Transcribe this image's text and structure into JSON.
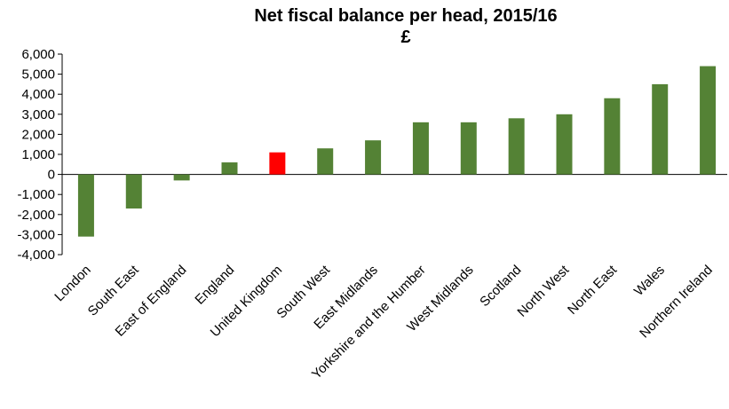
{
  "chart_data": {
    "type": "bar",
    "title": "Net fiscal balance per head, 2015/16",
    "subtitle": "£",
    "xlabel": "",
    "ylabel": "",
    "ylim": [
      -4000,
      6000
    ],
    "yticks": [
      6000,
      5000,
      4000,
      3000,
      2000,
      1000,
      0,
      -1000,
      -2000,
      -3000,
      -4000
    ],
    "ytick_labels": [
      "6,000",
      "5,000",
      "4,000",
      "3,000",
      "2,000",
      "1,000",
      "0",
      "-1,000",
      "-2,000",
      "-3,000",
      "-4,000"
    ],
    "grid": false,
    "legend": "none",
    "categories": [
      "London",
      "South East",
      "East of England",
      "England",
      "United Kingdom",
      "South West",
      "East Midlands",
      "Yorkshire and the Humber",
      "West Midlands",
      "Scotland",
      "North West",
      "North East",
      "Wales",
      "Northern Ireland"
    ],
    "values": [
      -3100,
      -1700,
      -300,
      600,
      1100,
      1300,
      1700,
      2600,
      2600,
      2800,
      3000,
      3800,
      4500,
      5400
    ],
    "colors": {
      "default": "#548235",
      "highlight": "#ff0000",
      "highlight_category": "United Kingdom"
    }
  }
}
